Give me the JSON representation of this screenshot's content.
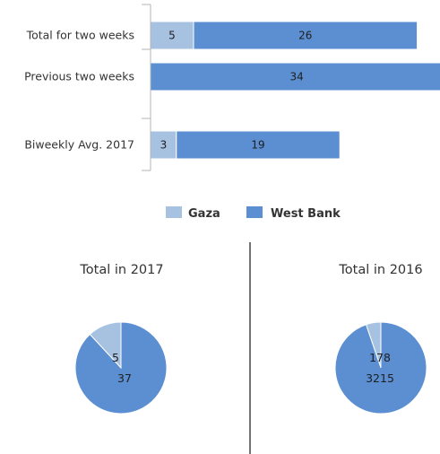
{
  "colors": {
    "gaza": "#a7c1e1",
    "west_bank": "#5b8fd1",
    "axis": "#b5b5b5",
    "divider": "#444444"
  },
  "chart_data": [
    {
      "type": "bar",
      "orientation": "horizontal",
      "stacked": true,
      "categories": [
        "Total for two weeks",
        "Previous two weeks",
        "Biweekly Avg. 2017"
      ],
      "series": [
        {
          "name": "Gaza",
          "values": [
            5,
            0,
            3
          ]
        },
        {
          "name": "West Bank",
          "values": [
            26,
            34,
            19
          ]
        }
      ],
      "xlim": [
        0,
        34
      ],
      "legend": {
        "position": "bottom",
        "entries": [
          "Gaza",
          "West Bank"
        ]
      }
    },
    {
      "type": "pie",
      "title": "Total in 2017",
      "labels": [
        "Gaza",
        "West Bank"
      ],
      "values": [
        5,
        37
      ]
    },
    {
      "type": "pie",
      "title": "Total in 2016",
      "labels": [
        "Gaza",
        "West Bank"
      ],
      "values": [
        178,
        3215
      ]
    }
  ]
}
